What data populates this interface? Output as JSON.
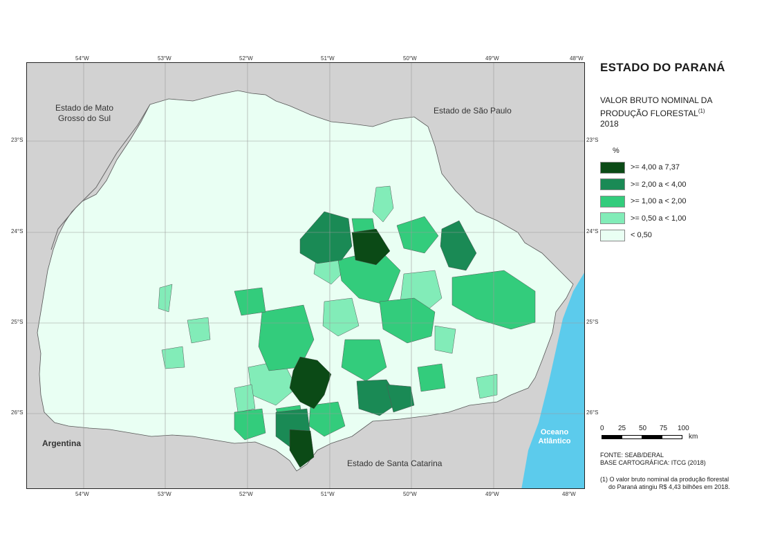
{
  "title": "ESTADO DO PARANÁ",
  "subtitle": {
    "line1": "VALOR BRUTO NOMINAL DA",
    "line2": "PRODUÇÃO FLORESTAL",
    "superscript": "(1)",
    "year": "2018"
  },
  "legend": {
    "unit": "%",
    "classes": [
      {
        "label": ">= 4,00 a 7,37",
        "color": "#0b4a16"
      },
      {
        "label": ">= 2,00 a < 4,00",
        "color": "#1a8a55"
      },
      {
        "label": ">= 1,00 a < 2,00",
        "color": "#33cc7c"
      },
      {
        "label": ">= 0,50 a < 1,00",
        "color": "#82ecb8"
      },
      {
        "label": "< 0,50",
        "color": "#e9fff3"
      }
    ]
  },
  "graticule": {
    "longitudes": [
      "54°W",
      "53°W",
      "52°W",
      "51°W",
      "50°W",
      "49°W",
      "48°W"
    ],
    "latitudes": [
      "23°S",
      "24°S",
      "25°S",
      "26°S"
    ]
  },
  "map_labels": {
    "mato_grosso": "Estado de Mato Grosso do Sul",
    "sao_paulo": "Estado de São Paulo",
    "santa_catarina": "Estado de Santa Catarina",
    "argentina": "Argentina",
    "ocean": "Oceano Atlântico"
  },
  "scale": {
    "ticks": [
      "0",
      "25",
      "50",
      "75",
      "100"
    ],
    "unit": "km"
  },
  "source": {
    "line1": "FONTE: SEAB/DERAL",
    "line2": "BASE CARTOGRÁFICA: ITCG (2018)"
  },
  "footnote": {
    "line1": "(1) O valor bruto nominal da produção florestal",
    "line2": "do Paraná atingiu R$ 4,43 bilhões em 2018."
  },
  "colors": {
    "background_land": "#d2d2d2",
    "ocean": "#5ccbec",
    "state_base": "#e9fff3"
  }
}
